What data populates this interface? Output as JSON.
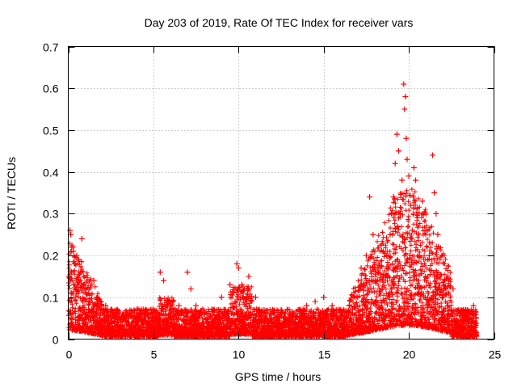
{
  "chart_data": {
    "type": "scatter",
    "title": "Day 203 of 2019, Rate Of TEC Index for receiver vars",
    "xlabel": "GPS time / hours",
    "ylabel": "ROTI / TECUs",
    "xlim": [
      0,
      25
    ],
    "ylim": [
      0,
      0.7
    ],
    "xticks": [
      0,
      5,
      10,
      15,
      20,
      25
    ],
    "yticks": [
      0,
      0.1,
      0.2,
      0.3,
      0.4,
      0.5,
      0.6,
      0.7
    ],
    "xtick_labels": [
      "0",
      "5",
      "10",
      "15",
      "20",
      "25"
    ],
    "ytick_labels": [
      "0",
      "0.1",
      "0.2",
      "0.3",
      "0.4",
      "0.5",
      "0.6",
      "0.7"
    ],
    "grid": true,
    "marker": "+",
    "color": "#ff0000",
    "series": [
      {
        "name": "ROTI",
        "points": [
          [
            0.05,
            0.15
          ],
          [
            0.1,
            0.26
          ],
          [
            0.15,
            0.25
          ],
          [
            0.2,
            0.22
          ],
          [
            0.3,
            0.21
          ],
          [
            0.4,
            0.18
          ],
          [
            0.5,
            0.2
          ],
          [
            0.6,
            0.19
          ],
          [
            0.7,
            0.16
          ],
          [
            0.8,
            0.24
          ],
          [
            0.9,
            0.13
          ],
          [
            1.0,
            0.12
          ],
          [
            1.2,
            0.11
          ],
          [
            1.5,
            0.14
          ],
          [
            1.7,
            0.1
          ],
          [
            1.9,
            0.09
          ],
          [
            2.2,
            0.08
          ],
          [
            2.5,
            0.07
          ],
          [
            3.0,
            0.06
          ],
          [
            3.5,
            0.06
          ],
          [
            4.0,
            0.05
          ],
          [
            4.5,
            0.06
          ],
          [
            5.0,
            0.07
          ],
          [
            5.4,
            0.16
          ],
          [
            5.6,
            0.14
          ],
          [
            6.0,
            0.08
          ],
          [
            6.5,
            0.08
          ],
          [
            7.0,
            0.16
          ],
          [
            7.2,
            0.12
          ],
          [
            7.5,
            0.08
          ],
          [
            8.0,
            0.06
          ],
          [
            8.5,
            0.07
          ],
          [
            9.0,
            0.1
          ],
          [
            9.5,
            0.13
          ],
          [
            9.9,
            0.18
          ],
          [
            10.0,
            0.17
          ],
          [
            10.2,
            0.13
          ],
          [
            10.6,
            0.15
          ],
          [
            11.0,
            0.1
          ],
          [
            11.5,
            0.07
          ],
          [
            12.0,
            0.07
          ],
          [
            12.5,
            0.07
          ],
          [
            13.0,
            0.06
          ],
          [
            13.5,
            0.07
          ],
          [
            14.0,
            0.08
          ],
          [
            14.5,
            0.09
          ],
          [
            15.0,
            0.1
          ],
          [
            15.5,
            0.08
          ],
          [
            16.0,
            0.07
          ],
          [
            16.5,
            0.08
          ],
          [
            17.0,
            0.1
          ],
          [
            17.2,
            0.17
          ],
          [
            17.5,
            0.2
          ],
          [
            17.7,
            0.34
          ],
          [
            17.9,
            0.25
          ],
          [
            18.0,
            0.21
          ],
          [
            18.2,
            0.16
          ],
          [
            18.5,
            0.15
          ],
          [
            18.7,
            0.2
          ],
          [
            18.9,
            0.25
          ],
          [
            19.0,
            0.3
          ],
          [
            19.1,
            0.34
          ],
          [
            19.2,
            0.42
          ],
          [
            19.3,
            0.49
          ],
          [
            19.4,
            0.45
          ],
          [
            19.5,
            0.3
          ],
          [
            19.6,
            0.38
          ],
          [
            19.7,
            0.61
          ],
          [
            19.75,
            0.55
          ],
          [
            19.8,
            0.58
          ],
          [
            19.85,
            0.48
          ],
          [
            19.9,
            0.43
          ],
          [
            20.0,
            0.39
          ],
          [
            20.1,
            0.32
          ],
          [
            20.2,
            0.26
          ],
          [
            20.3,
            0.41
          ],
          [
            20.4,
            0.38
          ],
          [
            20.5,
            0.29
          ],
          [
            20.6,
            0.2
          ],
          [
            20.8,
            0.33
          ],
          [
            21.0,
            0.26
          ],
          [
            21.2,
            0.2
          ],
          [
            21.4,
            0.44
          ],
          [
            21.5,
            0.35
          ],
          [
            21.6,
            0.3
          ],
          [
            21.7,
            0.25
          ],
          [
            21.8,
            0.12
          ],
          [
            22.0,
            0.1
          ],
          [
            22.3,
            0.08
          ],
          [
            22.6,
            0.12
          ],
          [
            22.9,
            0.07
          ],
          [
            23.2,
            0.07
          ],
          [
            23.5,
            0.06
          ],
          [
            23.8,
            0.08
          ],
          [
            23.95,
            0.05
          ]
        ]
      }
    ]
  }
}
